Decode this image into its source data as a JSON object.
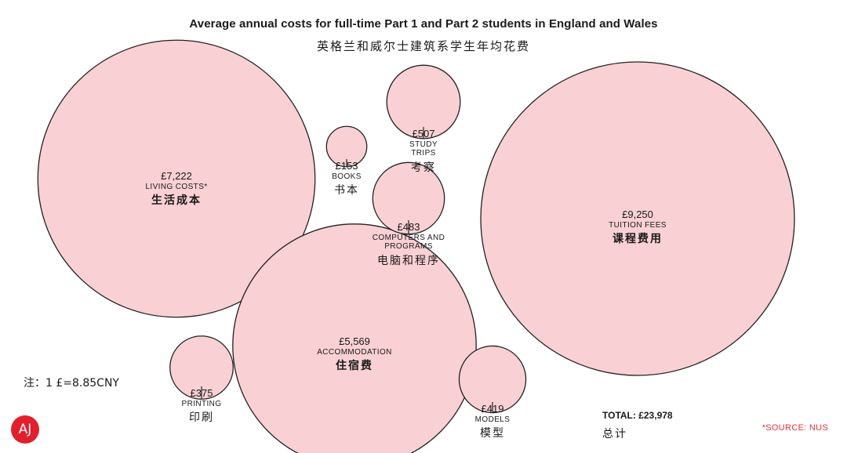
{
  "header": {
    "title": "Average annual costs for full-time Part 1 and Part 2 students in England and Wales",
    "subtitle": "英格兰和威尔士建筑系学生年均花费"
  },
  "chart_data": {
    "type": "bubble",
    "unit": "£",
    "colors": {
      "bubble_fill": "#f9d0d3",
      "bubble_stroke": "#222222"
    },
    "items": [
      {
        "id": "living",
        "value_label": "£7,222",
        "value": 7222,
        "label": "LIVING COSTS*",
        "label_zh": "生活成本"
      },
      {
        "id": "tuition",
        "value_label": "£9,250",
        "value": 9250,
        "label": "TUITION FEES",
        "label_zh": "课程费用"
      },
      {
        "id": "accommodation",
        "value_label": "£5,569",
        "value": 5569,
        "label": "ACCOMMODATION",
        "label_zh": "住宿费"
      },
      {
        "id": "books",
        "value_label": "£153",
        "value": 153,
        "label": "BOOKS",
        "label_zh": "书本"
      },
      {
        "id": "study_trips",
        "value_label": "£507",
        "value": 507,
        "label": "STUDY\nTRIPS",
        "label_zh": "考察"
      },
      {
        "id": "computers",
        "value_label": "£483",
        "value": 483,
        "label": "COMPUTERS AND\nPROGRAMS",
        "label_zh": "电脑和程序"
      },
      {
        "id": "printing",
        "value_label": "£375",
        "value": 375,
        "label": "PRINTING",
        "label_zh": "印刷"
      },
      {
        "id": "models",
        "value_label": "£419",
        "value": 419,
        "label": "MODELS",
        "label_zh": "模型"
      }
    ]
  },
  "footer": {
    "note": "注：1 £=8.85CNY",
    "total": "TOTAL: £23,978",
    "total_zh": "总计",
    "source": "*SOURCE: NUS",
    "logo": "AJ"
  }
}
